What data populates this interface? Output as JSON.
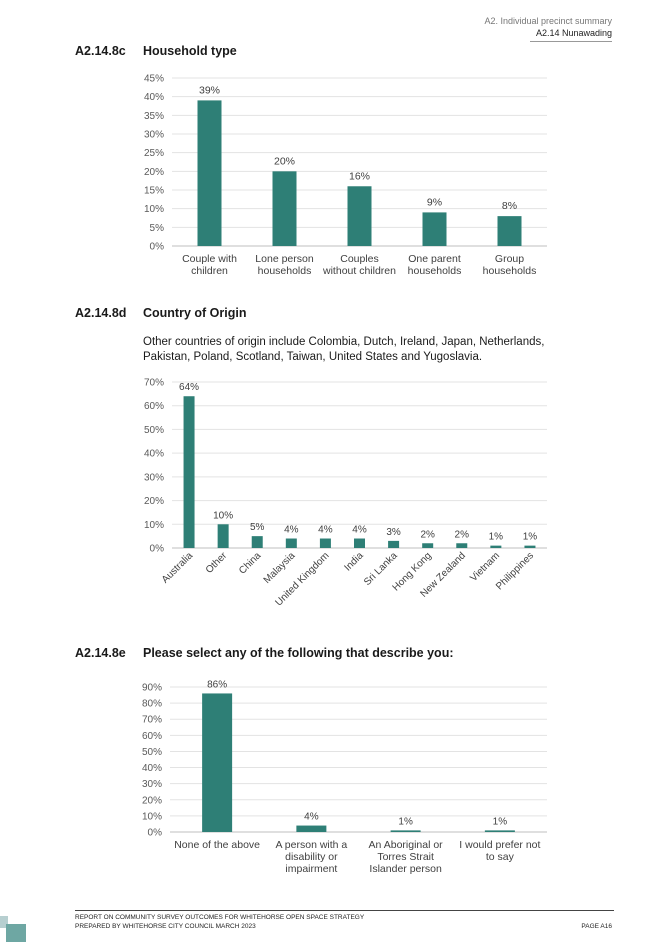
{
  "header": {
    "line1": "A2. Individual precinct summary",
    "line2": "A2.14 Nunawading"
  },
  "sections": [
    {
      "code": "A2.14.8c",
      "title": "Household type"
    },
    {
      "code": "A2.14.8d",
      "title": "Country of Origin",
      "note": "Other countries of origin include Colombia, Dutch, Ireland, Japan, Netherlands, Pakistan, Poland, Scotland, Taiwan, United States and Yugoslavia."
    },
    {
      "code": "A2.14.8e",
      "title": "Please select any of the following that describe you:"
    }
  ],
  "bar_color": "#2e7f76",
  "chart_data": [
    {
      "type": "bar",
      "categories": [
        [
          "Couple with",
          "children"
        ],
        [
          "Lone person",
          "households"
        ],
        [
          "Couples",
          "without children"
        ],
        [
          "One parent",
          "households"
        ],
        [
          "Group",
          "households"
        ]
      ],
      "values": [
        39,
        20,
        16,
        9,
        8
      ],
      "labels": [
        "39%",
        "20%",
        "16%",
        "9%",
        "8%"
      ],
      "yticks": [
        "0%",
        "5%",
        "10%",
        "15%",
        "20%",
        "25%",
        "30%",
        "35%",
        "40%",
        "45%"
      ],
      "ylim": [
        0,
        45
      ],
      "grid": true
    },
    {
      "type": "bar",
      "categories": [
        "Australia",
        "Other",
        "China",
        "Malaysia",
        "United Kingdom",
        "India",
        "Sri Lanka",
        "Hong Kong",
        "New Zealand",
        "Vietnam",
        "Philippines"
      ],
      "values": [
        64,
        10,
        5,
        4,
        4,
        4,
        3,
        2,
        2,
        1,
        1
      ],
      "labels": [
        "64%",
        "10%",
        "5%",
        "4%",
        "4%",
        "4%",
        "3%",
        "2%",
        "2%",
        "1%",
        "1%"
      ],
      "yticks": [
        "0%",
        "10%",
        "20%",
        "30%",
        "40%",
        "50%",
        "60%",
        "70%"
      ],
      "ylim": [
        0,
        70
      ],
      "grid": true
    },
    {
      "type": "bar",
      "categories": [
        [
          "None of the above"
        ],
        [
          "A person with a",
          "disability or",
          "impairment"
        ],
        [
          "An Aboriginal or",
          "Torres Strait",
          "Islander person"
        ],
        [
          "I would prefer not",
          "to say"
        ]
      ],
      "values": [
        86,
        4,
        1,
        1
      ],
      "labels": [
        "86%",
        "4%",
        "1%",
        "1%"
      ],
      "yticks": [
        "0%",
        "10%",
        "20%",
        "30%",
        "40%",
        "50%",
        "60%",
        "70%",
        "80%",
        "90%"
      ],
      "ylim": [
        0,
        90
      ],
      "grid": true
    }
  ],
  "footer": {
    "line1": "REPORT ON COMMUNITY SURVEY OUTCOMES FOR WHITEHORSE OPEN SPACE STRATEGY",
    "line2": "PREPARED BY WHITEHORSE CITY COUNCIL MARCH 2023",
    "page": "PAGE A16"
  }
}
